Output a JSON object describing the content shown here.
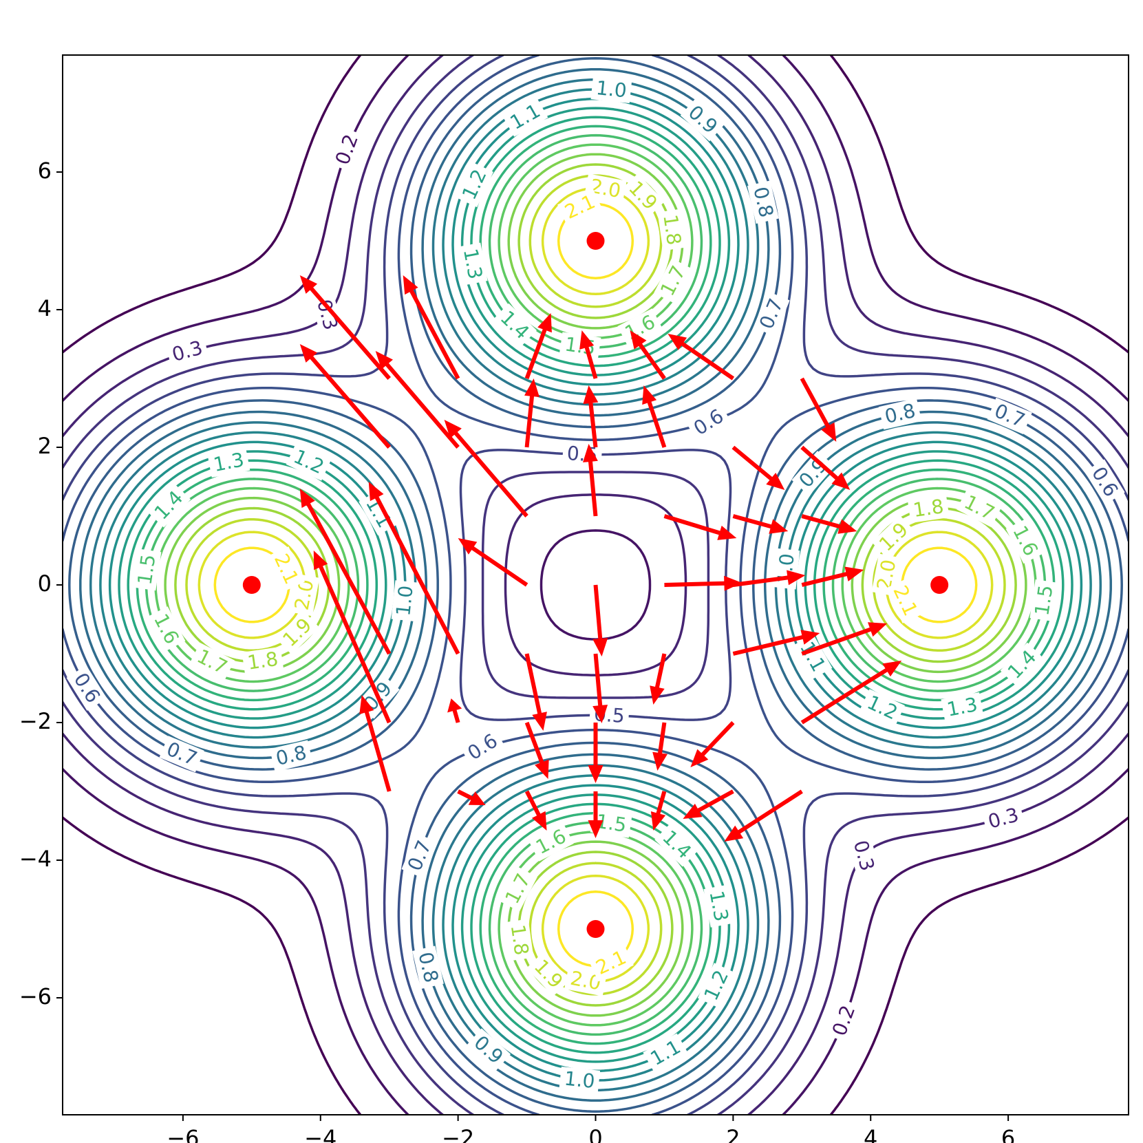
{
  "chart_data": {
    "type": "contour",
    "colormap": "viridis",
    "xlim": [
      -7.75,
      7.75
    ],
    "ylim": [
      -7.7,
      7.7
    ],
    "xticks": [
      {
        "value": -6,
        "label": "−6"
      },
      {
        "value": -4,
        "label": "−4"
      },
      {
        "value": -2,
        "label": "−2"
      },
      0,
      2,
      4,
      6
    ],
    "yticks": [
      {
        "value": -6,
        "label": "−6"
      },
      {
        "value": -4,
        "label": "−4"
      },
      {
        "value": -2,
        "label": "−2"
      },
      0,
      2,
      4,
      6
    ],
    "levels": [
      0.1,
      0.2,
      0.3,
      0.4,
      0.5,
      0.6,
      0.7,
      0.8,
      0.9,
      {
        "value": 1,
        "label": "1.0"
      },
      1.1,
      1.2,
      1.3,
      1.4,
      1.5,
      1.6,
      1.7,
      1.8,
      1.9,
      {
        "value": 2,
        "label": "2.0"
      },
      2.1
    ],
    "points": {
      "x": [
        -5,
        0,
        5,
        0
      ],
      "y": [
        0,
        5,
        0,
        -5
      ],
      "color": "#ff0000"
    },
    "quiver": {
      "color": "#ff0000",
      "x": [
        -1,
        -1,
        -2,
        -3,
        -3,
        -2,
        -2,
        -3,
        -3,
        -3,
        -2,
        -2,
        -1,
        -1,
        0,
        0,
        0,
        1,
        1,
        2,
        1,
        2,
        3,
        3,
        2,
        3,
        1,
        2,
        3,
        2,
        3,
        3,
        2,
        2,
        3,
        1,
        1,
        1,
        0,
        0,
        0,
        0,
        -1,
        -1,
        -1
      ],
      "y": [
        1,
        0,
        2,
        2,
        3,
        3,
        -1,
        -1,
        -2,
        -3,
        -2,
        -3,
        2,
        3,
        1,
        2,
        3,
        2,
        3,
        3,
        1,
        2,
        3,
        2,
        1,
        1,
        0,
        0,
        0,
        -1,
        -1,
        -2,
        -2,
        -3,
        -3,
        -1,
        -2,
        -3,
        0,
        -1,
        -2,
        -3,
        -1,
        -2,
        -3
      ],
      "u": [
        -1.2,
        -1,
        -1.2,
        -1.3,
        -1.3,
        -0.8,
        -1.3,
        -1.3,
        -1.1,
        -0.4,
        -0.1,
        0.4,
        0.1,
        0.35,
        -0.1,
        -0.1,
        -0.2,
        -0.3,
        -0.5,
        -0.95,
        1.05,
        0.75,
        0.5,
        0.7,
        0.8,
        0.8,
        1.13,
        1.05,
        0.9,
        1.26,
        1.24,
        1.45,
        -0.62,
        -0.73,
        -1.13,
        -0.16,
        -0.1,
        -0.16,
        0.09,
        0.09,
        0,
        0,
        0.24,
        0.31,
        0.29
      ],
      "v": [
        1.4,
        0.68,
        1.4,
        1.5,
        1.5,
        1.5,
        2.5,
        2.4,
        2.5,
        1.4,
        0.35,
        -0.2,
        1.0,
        0.95,
        1.05,
        0.9,
        0.7,
        0.9,
        0.7,
        0.65,
        -0.32,
        -0.62,
        -0.92,
        -0.62,
        -0.22,
        -0.22,
        0.03,
        0.14,
        0.22,
        0.3,
        0.44,
        0.9,
        -0.65,
        -0.4,
        -0.73,
        -0.74,
        -0.7,
        -0.57,
        -1.04,
        -1.01,
        -0.88,
        -0.68,
        -1.12,
        -0.82,
        -0.57
      ]
    }
  }
}
